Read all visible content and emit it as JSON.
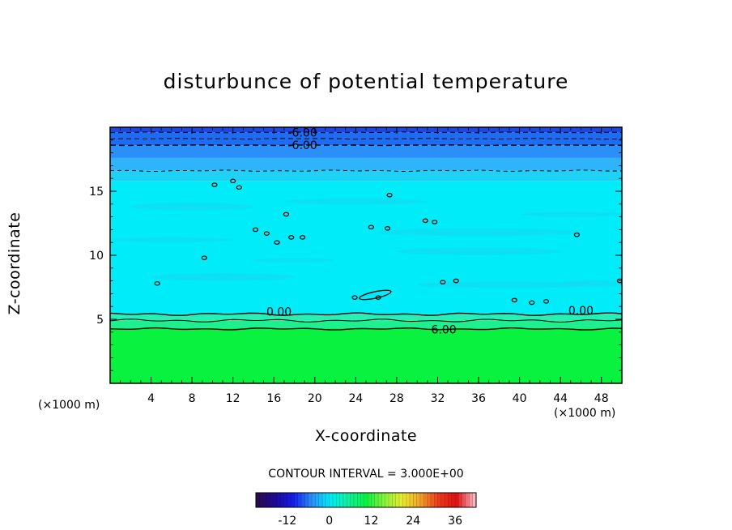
{
  "chart_data": {
    "type": "heatmap",
    "title": "disturbunce of potential temperature",
    "xlabel": "X-coordinate",
    "ylabel": "Z-coordinate",
    "x_unit_left": "(×1000 m)",
    "x_unit_right": "(×1000 m)",
    "xlim": [
      0,
      50
    ],
    "ylim": [
      0,
      20
    ],
    "x_ticks": [
      "4",
      "8",
      "12",
      "16",
      "20",
      "24",
      "28",
      "32",
      "36",
      "40",
      "44",
      "48"
    ],
    "x_tick_values": [
      4,
      8,
      12,
      16,
      20,
      24,
      28,
      32,
      36,
      40,
      44,
      48
    ],
    "y_ticks": [
      "5",
      "10",
      "15"
    ],
    "y_tick_values": [
      5,
      10,
      15
    ],
    "contour_interval_text": "CONTOUR INTERVAL = 3.000E+00",
    "contour_labels": [
      {
        "text": "-6.00",
        "x": 18.8,
        "z": 19.6
      },
      {
        "text": "-6.00",
        "x": 18.8,
        "z": 18.6
      },
      {
        "text": "0.00",
        "x": 16.5,
        "z": 5.6
      },
      {
        "text": "0.00",
        "x": 46.0,
        "z": 5.7
      },
      {
        "text": "6.00",
        "x": 32.6,
        "z": 4.2
      }
    ],
    "bands": [
      {
        "z_from": 19.6,
        "z_to": 20,
        "value": -12,
        "color": "#1e46e6"
      },
      {
        "z_from": 18.6,
        "z_to": 19.6,
        "value": -9,
        "color": "#1e6cf2"
      },
      {
        "z_from": 17.6,
        "z_to": 18.6,
        "value": -6,
        "color": "#2a8ff8"
      },
      {
        "z_from": 16.6,
        "z_to": 17.6,
        "value": -3,
        "color": "#2fb4f9"
      },
      {
        "z_from": 15.8,
        "z_to": 16.6,
        "value": -1,
        "color": "#1ed2f5"
      },
      {
        "z_from": 5.4,
        "z_to": 15.8,
        "value": 0,
        "color": "#00ecf8"
      },
      {
        "z_from": 4.9,
        "z_to": 5.4,
        "value": 3,
        "color": "#26f0b4"
      },
      {
        "z_from": 4.3,
        "z_to": 4.9,
        "value": 6,
        "color": "#1ef090"
      },
      {
        "z_from": 0,
        "z_to": 4.3,
        "value": 9,
        "color": "#0af240"
      }
    ],
    "colorbar": {
      "ticks": [
        "-12",
        "0",
        "12",
        "24",
        "36"
      ],
      "tick_values": [
        -12,
        0,
        12,
        24,
        36
      ],
      "range": [
        -21,
        42
      ],
      "colors": [
        "#2b0a4f",
        "#1d0a9a",
        "#141eeb",
        "#2a8ff8",
        "#00ecf8",
        "#12f0a0",
        "#0af240",
        "#86f23a",
        "#e8ec2e",
        "#f0a126",
        "#ec3a1e",
        "#e00f0f",
        "#f5b6bf"
      ]
    },
    "grid": false,
    "legend": "colorbar-bottom"
  }
}
